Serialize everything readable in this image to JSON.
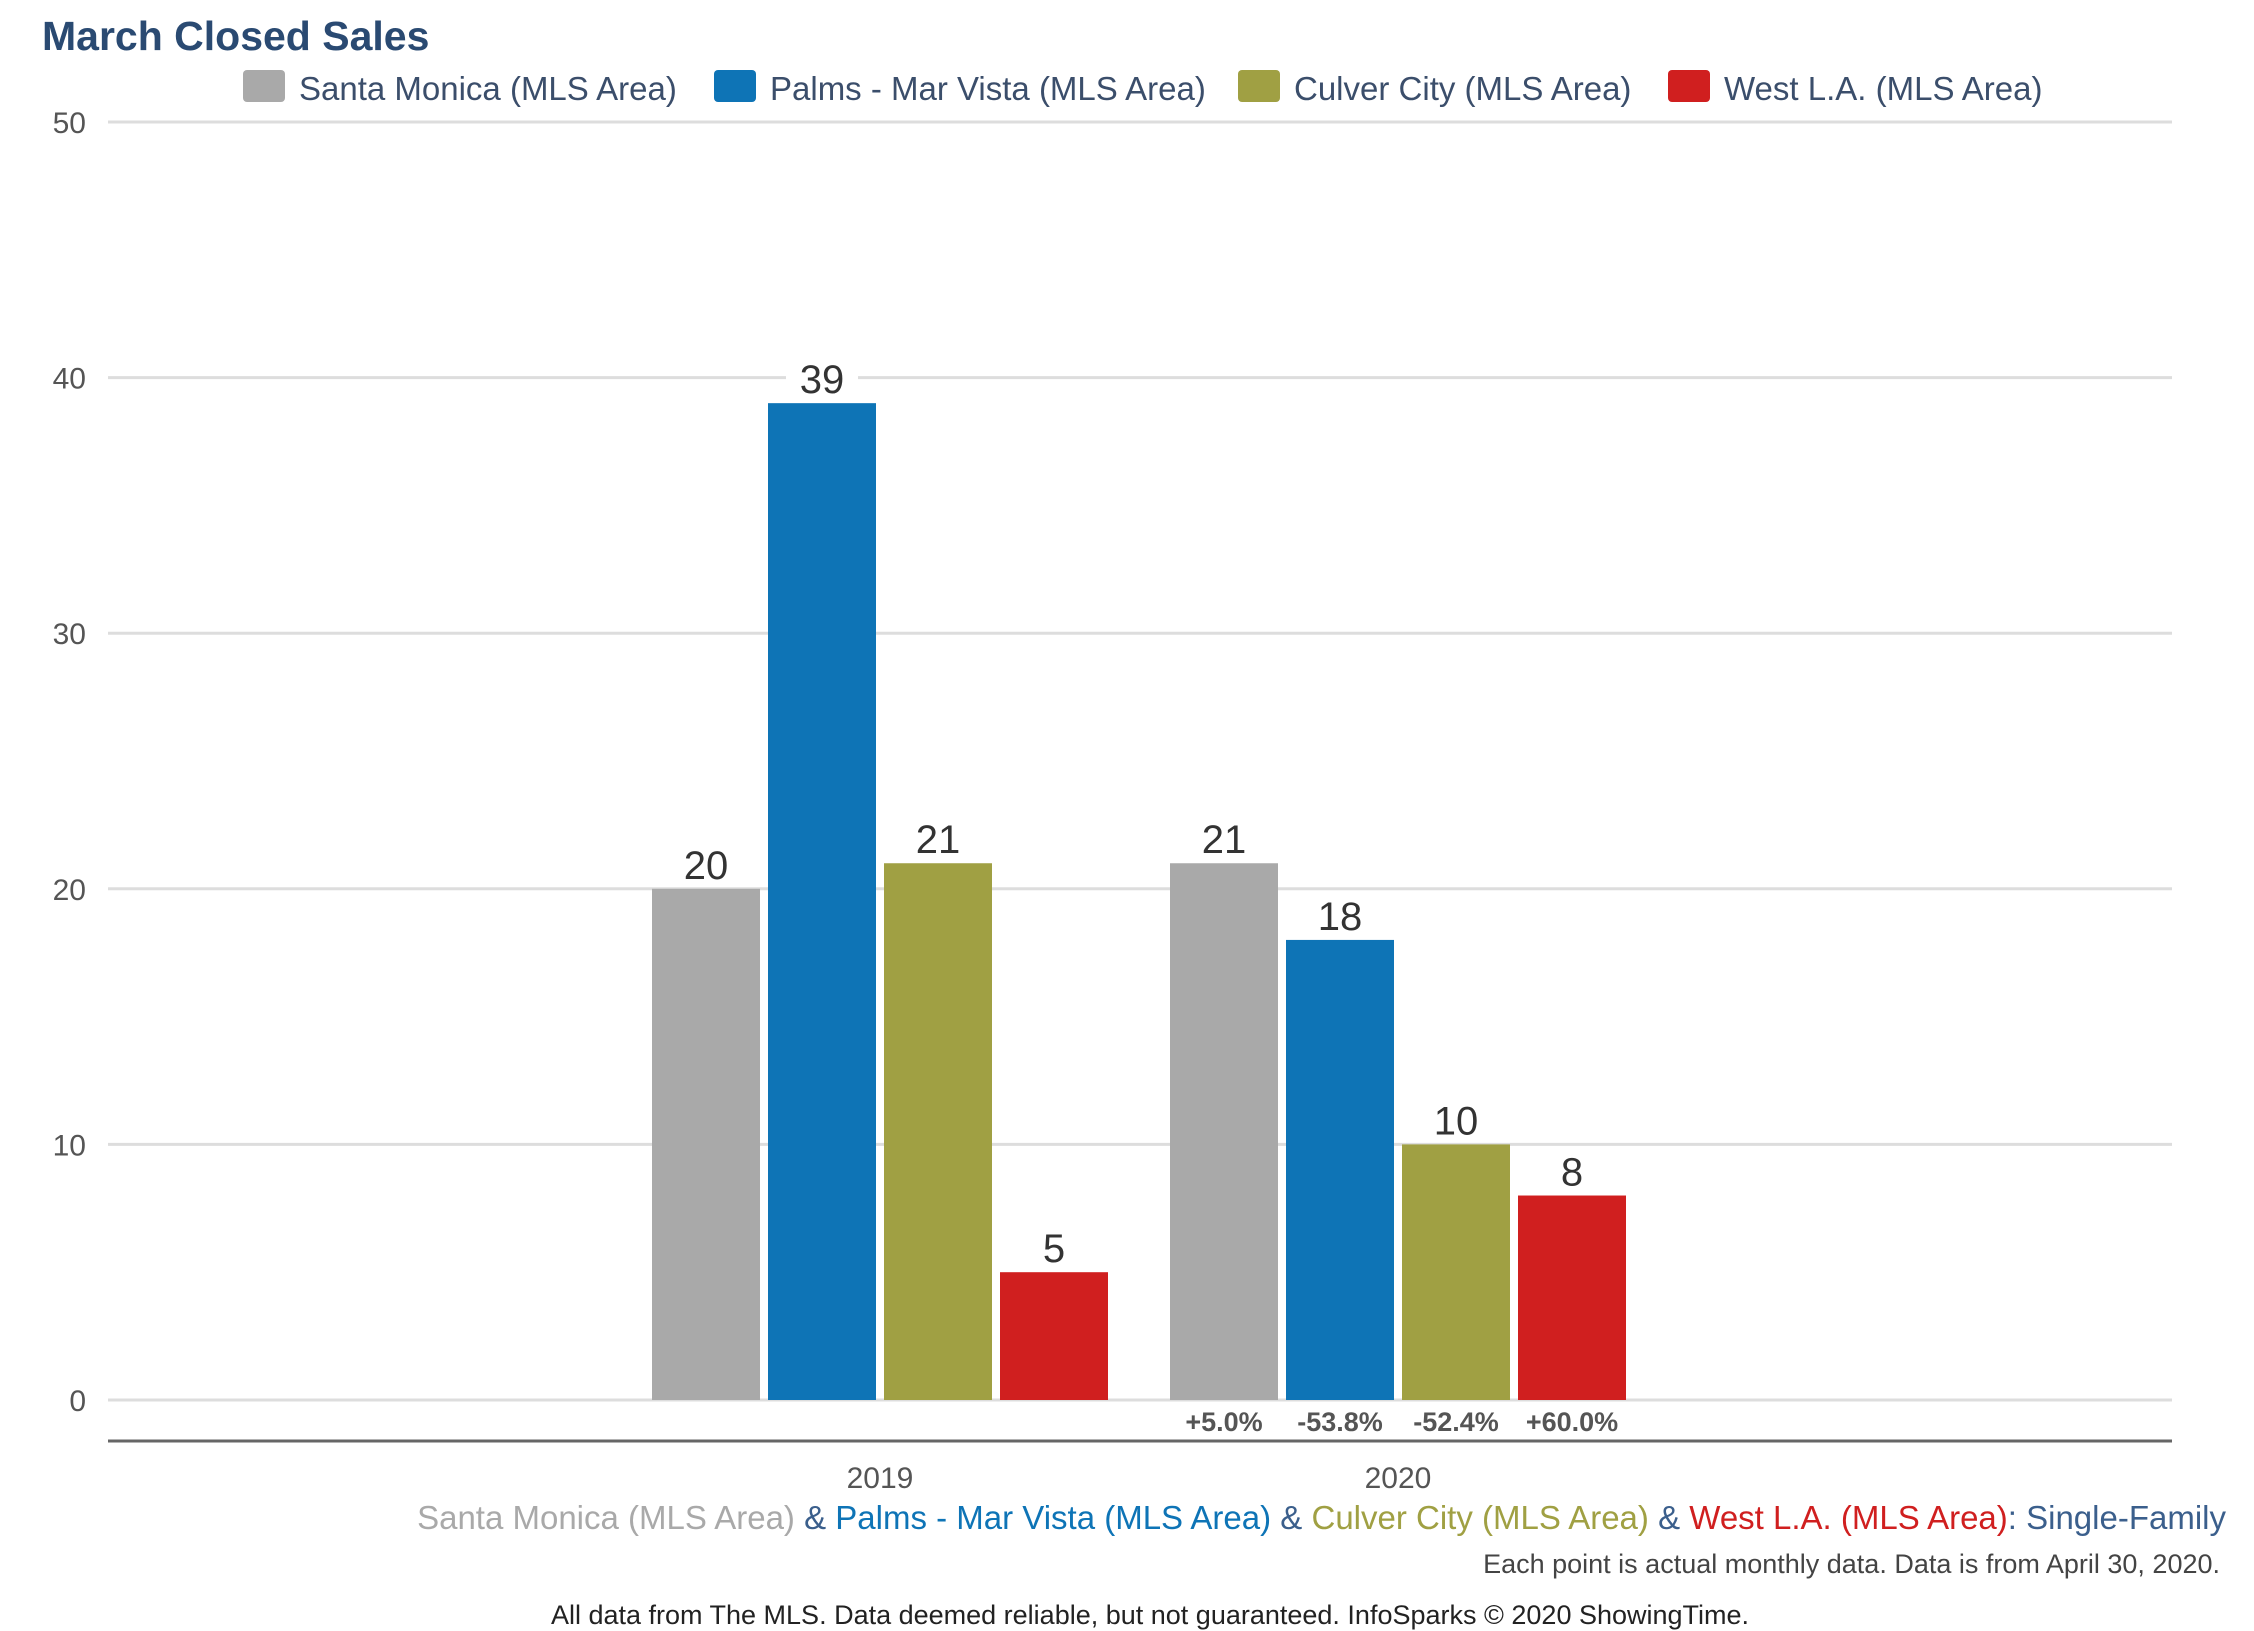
{
  "chart_data": {
    "type": "bar",
    "title": "March Closed Sales",
    "categories": [
      "2019",
      "2020"
    ],
    "series": [
      {
        "name": "Santa Monica (MLS Area)",
        "color": "#a9a9a9",
        "values": [
          20,
          21
        ],
        "change_labels": [
          "",
          "+5.0%"
        ]
      },
      {
        "name": "Palms - Mar Vista (MLS Area)",
        "color": "#0e74b6",
        "values": [
          39,
          18
        ],
        "change_labels": [
          "",
          "-53.8%"
        ]
      },
      {
        "name": "Culver City (MLS Area)",
        "color": "#a0a043",
        "values": [
          21,
          10
        ],
        "change_labels": [
          "",
          "-52.4%"
        ]
      },
      {
        "name": "West L.A. (MLS Area)",
        "color": "#d01f1f",
        "values": [
          5,
          8
        ],
        "change_labels": [
          "",
          "+60.0%"
        ]
      }
    ],
    "ylim": [
      0,
      50
    ],
    "yticks": [
      0,
      10,
      20,
      30,
      40,
      50
    ],
    "grid": true,
    "legend_position": "top",
    "subtitle": {
      "separator": " & ",
      "suffix_separator": ": ",
      "suffix": "Single-Family",
      "text_color": "#3b5f8c"
    },
    "note": "Each point is actual monthly data. Data is from April 30, 2020.",
    "footer": "All data from The MLS. Data deemed reliable, but not guaranteed. InfoSparks © 2020 ShowingTime."
  }
}
